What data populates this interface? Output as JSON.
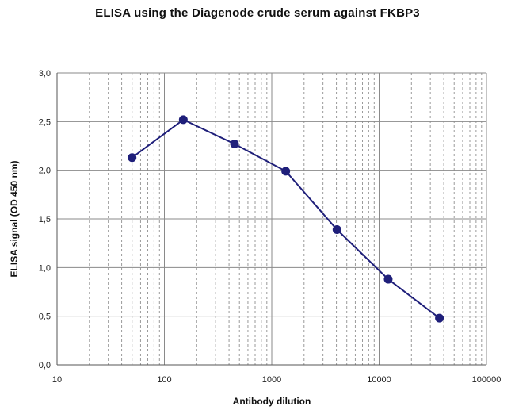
{
  "chart_data": {
    "type": "line",
    "title": "ELISA using the Diagenode crude serum against FKBP3",
    "xlabel": "Antibody dilution",
    "ylabel": "ELISA signal (OD 450 nm)",
    "x_scale": "log",
    "xlim": [
      10,
      100000
    ],
    "ylim": [
      0.0,
      3.0
    ],
    "x_ticks": [
      "10",
      "100",
      "1000",
      "10000",
      "100000"
    ],
    "y_ticks": [
      "0,0",
      "0,5",
      "1,0",
      "1,5",
      "2,0",
      "2,5",
      "3,0"
    ],
    "grid": true,
    "legend": "none",
    "series": [
      {
        "color": "#1f1f7a",
        "x": [
          50,
          150,
          450,
          1350,
          4050,
          12150,
          36450
        ],
        "y": [
          2.13,
          2.52,
          2.27,
          1.99,
          1.39,
          0.88,
          0.48
        ]
      }
    ]
  }
}
